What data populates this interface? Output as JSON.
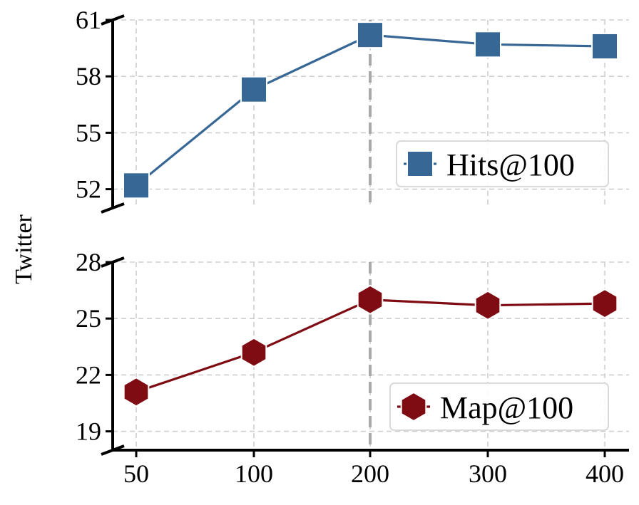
{
  "chart_data": {
    "type": "line",
    "ylabel": "Twitter",
    "x_categories": [
      "50",
      "100",
      "200",
      "300",
      "400"
    ],
    "marker_vline_at": "200",
    "grid": true,
    "panels": [
      {
        "series": [
          {
            "name": "Hits@100",
            "marker": "square",
            "color": "#376795",
            "values": [
              52.2,
              57.3,
              60.2,
              59.7,
              59.6
            ]
          }
        ],
        "yticks": [
          "52",
          "55",
          "58",
          "61"
        ],
        "ylim": [
          51.0,
          61.0
        ],
        "legend_placement": "lower-right"
      },
      {
        "series": [
          {
            "name": "Map@100",
            "marker": "hexagon",
            "color": "#7f0b13",
            "values": [
              21.1,
              23.2,
              26.0,
              25.7,
              25.8
            ]
          }
        ],
        "yticks": [
          "19",
          "22",
          "25",
          "28"
        ],
        "ylim": [
          18.0,
          28.0
        ],
        "legend_placement": "lower-right"
      }
    ]
  }
}
